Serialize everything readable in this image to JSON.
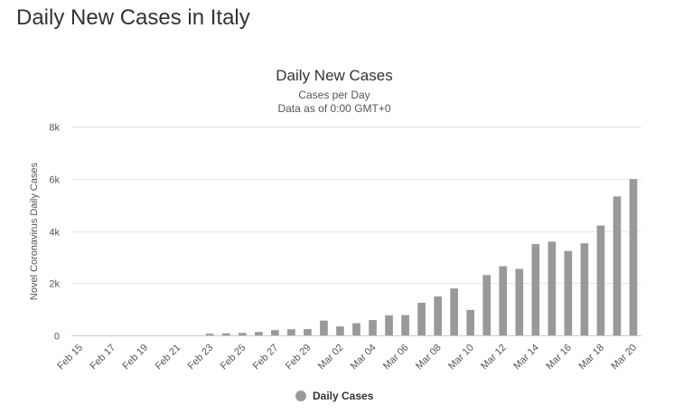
{
  "page": {
    "heading": "Daily New Cases in Italy"
  },
  "chart_data": {
    "type": "bar",
    "title": "Daily New Cases",
    "subtitle_line1": "Cases per Day",
    "subtitle_line2": "Data as of 0:00 GMT+0",
    "xlabel": "",
    "ylabel": "Novel Coronavirus Daily Cases",
    "ylim": [
      0,
      8000
    ],
    "y_ticks": [
      0,
      2000,
      4000,
      6000,
      8000
    ],
    "y_tick_labels": [
      "0",
      "2k",
      "4k",
      "6k",
      "8k"
    ],
    "grid": true,
    "legend_position": "bottom-center",
    "bar_color": "#999999",
    "categories": [
      "Feb 15",
      "Feb 16",
      "Feb 17",
      "Feb 18",
      "Feb 19",
      "Feb 20",
      "Feb 21",
      "Feb 22",
      "Feb 23",
      "Feb 24",
      "Feb 25",
      "Feb 26",
      "Feb 27",
      "Feb 28",
      "Feb 29",
      "Mar 01",
      "Mar 02",
      "Mar 03",
      "Mar 04",
      "Mar 05",
      "Mar 06",
      "Mar 07",
      "Mar 08",
      "Mar 09",
      "Mar 10",
      "Mar 11",
      "Mar 12",
      "Mar 13",
      "Mar 14",
      "Mar 15",
      "Mar 16",
      "Mar 17",
      "Mar 18",
      "Mar 19",
      "Mar 20"
    ],
    "x_tick_labels": [
      "Feb 15",
      "Feb 17",
      "Feb 19",
      "Feb 21",
      "Feb 23",
      "Feb 25",
      "Feb 27",
      "Feb 29",
      "Mar 02",
      "Mar 04",
      "Mar 06",
      "Mar 08",
      "Mar 10",
      "Mar 12",
      "Mar 14",
      "Mar 16",
      "Mar 18",
      "Mar 20"
    ],
    "series": [
      {
        "name": "Daily Cases",
        "values": [
          0,
          0,
          0,
          0,
          0,
          0,
          0,
          0,
          62,
          77,
          93,
          131,
          202,
          233,
          240,
          566,
          342,
          466,
          587,
          769,
          778,
          1247,
          1492,
          1797,
          977,
          2313,
          2651,
          2547,
          3497,
          3590,
          3233,
          3526,
          4207,
          5322,
          5986
        ]
      }
    ]
  }
}
